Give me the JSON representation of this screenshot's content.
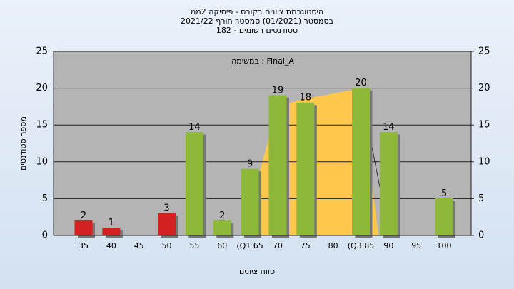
{
  "chart_data": {
    "type": "bar",
    "title": [
      "היסטוגרמת ציונים בקורס - פיסיקה 2ממ",
      "בסמסטר  (01/2021)  סמסטר חורף 2021/22",
      "סטודנטים רשומים - 182"
    ],
    "annotation": "במשימה : Final_A",
    "x_label": "טווח ציונים",
    "y_label": "מספר סטודנטים",
    "categories": [
      "35",
      "40",
      "45",
      "50",
      "55",
      "60",
      "(Q1 65",
      "70",
      "75",
      "80",
      "(Q3 85",
      "90",
      "95",
      "100"
    ],
    "values": [
      2,
      1,
      null,
      3,
      14,
      2,
      9,
      19,
      18,
      null,
      20,
      14,
      null,
      5
    ],
    "colors": [
      "#d42020",
      "#d42020",
      null,
      "#d42020",
      "#8db83a",
      "#8db83a",
      "#8db83a",
      "#8db83a",
      "#8db83a",
      null,
      "#8db83a",
      "#8db83a",
      null,
      "#8db83a"
    ],
    "ylim": [
      0,
      25
    ],
    "yticks": [
      0,
      5,
      10,
      15,
      20,
      25
    ],
    "y2lim": [
      0,
      25
    ],
    "y2ticks": [
      0,
      5,
      10,
      15,
      20,
      25
    ],
    "grid": true
  }
}
